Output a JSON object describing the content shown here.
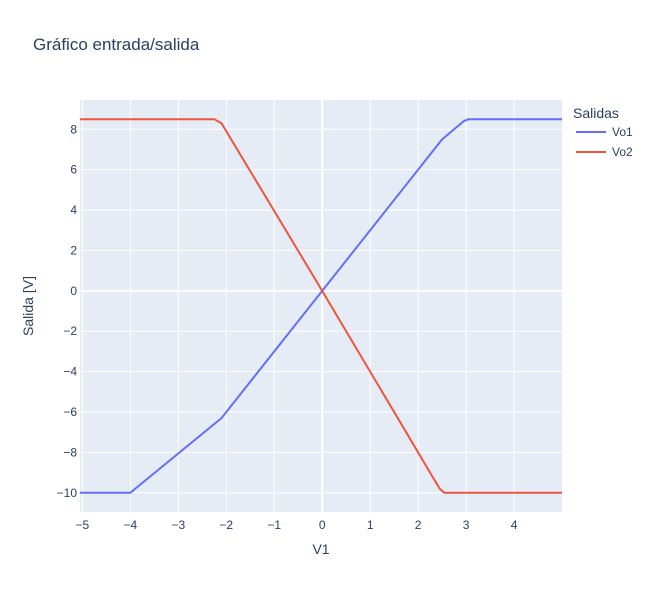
{
  "chart_data": {
    "type": "line",
    "title": "Gráfico entrada/salida",
    "xlabel": "V1",
    "ylabel": "Salida [V]",
    "xlim": [
      -5.05,
      5
    ],
    "ylim": [
      -10.95,
      9.45
    ],
    "x_ticks": [
      -5,
      -4,
      -3,
      -2,
      -1,
      0,
      1,
      2,
      3,
      4
    ],
    "x_tick_labels": [
      "−5",
      "−4",
      "−3",
      "−2",
      "−1",
      "0",
      "1",
      "2",
      "3",
      "4"
    ],
    "y_ticks": [
      -10,
      -8,
      -6,
      -4,
      -2,
      0,
      2,
      4,
      6,
      8
    ],
    "y_tick_labels": [
      "−10",
      "−8",
      "−6",
      "−4",
      "−2",
      "0",
      "2",
      "4",
      "6",
      "8"
    ],
    "grid": true,
    "legend": {
      "title": "Salidas",
      "placement": "right"
    },
    "series": [
      {
        "name": "Vo1",
        "color": "#636efa",
        "x": [
          -5.05,
          -4.0,
          -3.9,
          -2.1,
          0.0,
          2.5,
          2.95,
          3.05,
          5.0
        ],
        "y": [
          -10.0,
          -10.0,
          -9.8,
          -6.3,
          0.0,
          7.5,
          8.4,
          8.5,
          8.5
        ]
      },
      {
        "name": "Vo2",
        "color": "#ef553b",
        "x": [
          -5.05,
          -2.25,
          -2.1,
          0.0,
          2.45,
          2.55,
          5.0
        ],
        "y": [
          8.5,
          8.5,
          8.3,
          0.0,
          -9.8,
          -10.0,
          -10.0
        ]
      }
    ]
  }
}
